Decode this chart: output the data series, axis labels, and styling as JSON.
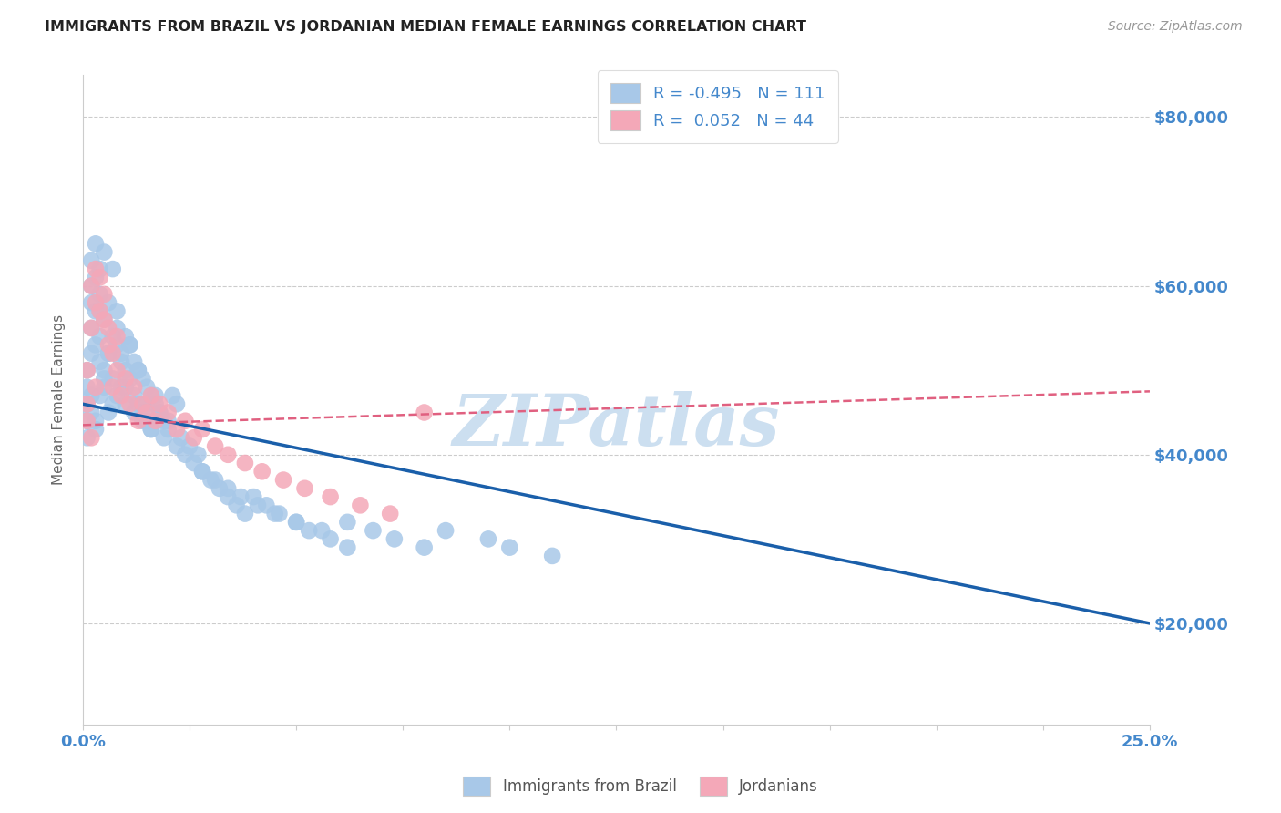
{
  "title": "IMMIGRANTS FROM BRAZIL VS JORDANIAN MEDIAN FEMALE EARNINGS CORRELATION CHART",
  "source": "Source: ZipAtlas.com",
  "ylabel": "Median Female Earnings",
  "y_ticks": [
    20000,
    40000,
    60000,
    80000
  ],
  "y_tick_labels": [
    "$20,000",
    "$40,000",
    "$60,000",
    "$80,000"
  ],
  "x_min": 0.0,
  "x_max": 0.25,
  "y_min": 8000,
  "y_max": 85000,
  "brazil_color": "#a8c8e8",
  "jordan_color": "#f4a8b8",
  "brazil_line_color": "#1a5faa",
  "jordan_line_color": "#e06080",
  "axis_label_color": "#4488cc",
  "watermark_color": "#ccdff0",
  "legend_brazil_color": "#a8c8e8",
  "legend_jordan_color": "#f4a8b8",
  "brazil_trend_x": [
    0.0,
    0.25
  ],
  "brazil_trend_y": [
    46000,
    20000
  ],
  "jordan_trend_x": [
    0.0,
    0.25
  ],
  "jordan_trend_y": [
    43500,
    47500
  ],
  "brazil_x": [
    0.001,
    0.001,
    0.001,
    0.001,
    0.001,
    0.002,
    0.002,
    0.002,
    0.002,
    0.002,
    0.002,
    0.003,
    0.003,
    0.003,
    0.003,
    0.003,
    0.004,
    0.004,
    0.004,
    0.004,
    0.004,
    0.005,
    0.005,
    0.005,
    0.005,
    0.006,
    0.006,
    0.006,
    0.007,
    0.007,
    0.007,
    0.008,
    0.008,
    0.008,
    0.009,
    0.009,
    0.01,
    0.01,
    0.01,
    0.011,
    0.011,
    0.012,
    0.012,
    0.013,
    0.013,
    0.014,
    0.014,
    0.015,
    0.015,
    0.016,
    0.016,
    0.017,
    0.018,
    0.019,
    0.02,
    0.021,
    0.022,
    0.023,
    0.025,
    0.027,
    0.028,
    0.03,
    0.032,
    0.034,
    0.036,
    0.038,
    0.04,
    0.043,
    0.046,
    0.05,
    0.053,
    0.058,
    0.062,
    0.068,
    0.073,
    0.08,
    0.085,
    0.095,
    0.1,
    0.11,
    0.002,
    0.003,
    0.004,
    0.005,
    0.006,
    0.007,
    0.008,
    0.009,
    0.01,
    0.011,
    0.012,
    0.013,
    0.014,
    0.015,
    0.016,
    0.017,
    0.018,
    0.019,
    0.02,
    0.022,
    0.024,
    0.026,
    0.028,
    0.031,
    0.034,
    0.037,
    0.041,
    0.045,
    0.05,
    0.056,
    0.062
  ],
  "brazil_y": [
    46000,
    44000,
    50000,
    42000,
    48000,
    55000,
    58000,
    52000,
    60000,
    45000,
    63000,
    57000,
    61000,
    65000,
    43000,
    53000,
    54000,
    59000,
    62000,
    47000,
    51000,
    56000,
    50000,
    48000,
    64000,
    45000,
    52000,
    58000,
    54000,
    49000,
    62000,
    53000,
    47000,
    57000,
    48000,
    52000,
    50000,
    54000,
    46000,
    49000,
    53000,
    47000,
    51000,
    46000,
    50000,
    45000,
    49000,
    44000,
    48000,
    43000,
    47000,
    46000,
    45000,
    44000,
    43000,
    47000,
    46000,
    42000,
    41000,
    40000,
    38000,
    37000,
    36000,
    35000,
    34000,
    33000,
    35000,
    34000,
    33000,
    32000,
    31000,
    30000,
    32000,
    31000,
    30000,
    29000,
    31000,
    30000,
    29000,
    28000,
    47000,
    44000,
    57000,
    49000,
    52000,
    46000,
    55000,
    51000,
    48000,
    53000,
    45000,
    50000,
    44000,
    46000,
    43000,
    47000,
    45000,
    42000,
    44000,
    41000,
    40000,
    39000,
    38000,
    37000,
    36000,
    35000,
    34000,
    33000,
    32000,
    31000,
    29000
  ],
  "jordan_x": [
    0.001,
    0.001,
    0.001,
    0.002,
    0.002,
    0.002,
    0.003,
    0.003,
    0.003,
    0.004,
    0.004,
    0.005,
    0.005,
    0.006,
    0.006,
    0.007,
    0.007,
    0.008,
    0.008,
    0.009,
    0.01,
    0.011,
    0.012,
    0.013,
    0.014,
    0.015,
    0.016,
    0.017,
    0.018,
    0.02,
    0.022,
    0.024,
    0.026,
    0.028,
    0.031,
    0.034,
    0.038,
    0.042,
    0.047,
    0.052,
    0.058,
    0.065,
    0.072,
    0.08
  ],
  "jordan_y": [
    46000,
    50000,
    44000,
    55000,
    60000,
    42000,
    58000,
    62000,
    48000,
    57000,
    61000,
    56000,
    59000,
    53000,
    55000,
    52000,
    48000,
    50000,
    54000,
    47000,
    49000,
    46000,
    48000,
    44000,
    46000,
    45000,
    47000,
    44000,
    46000,
    45000,
    43000,
    44000,
    42000,
    43000,
    41000,
    40000,
    39000,
    38000,
    37000,
    36000,
    35000,
    34000,
    33000,
    45000
  ]
}
